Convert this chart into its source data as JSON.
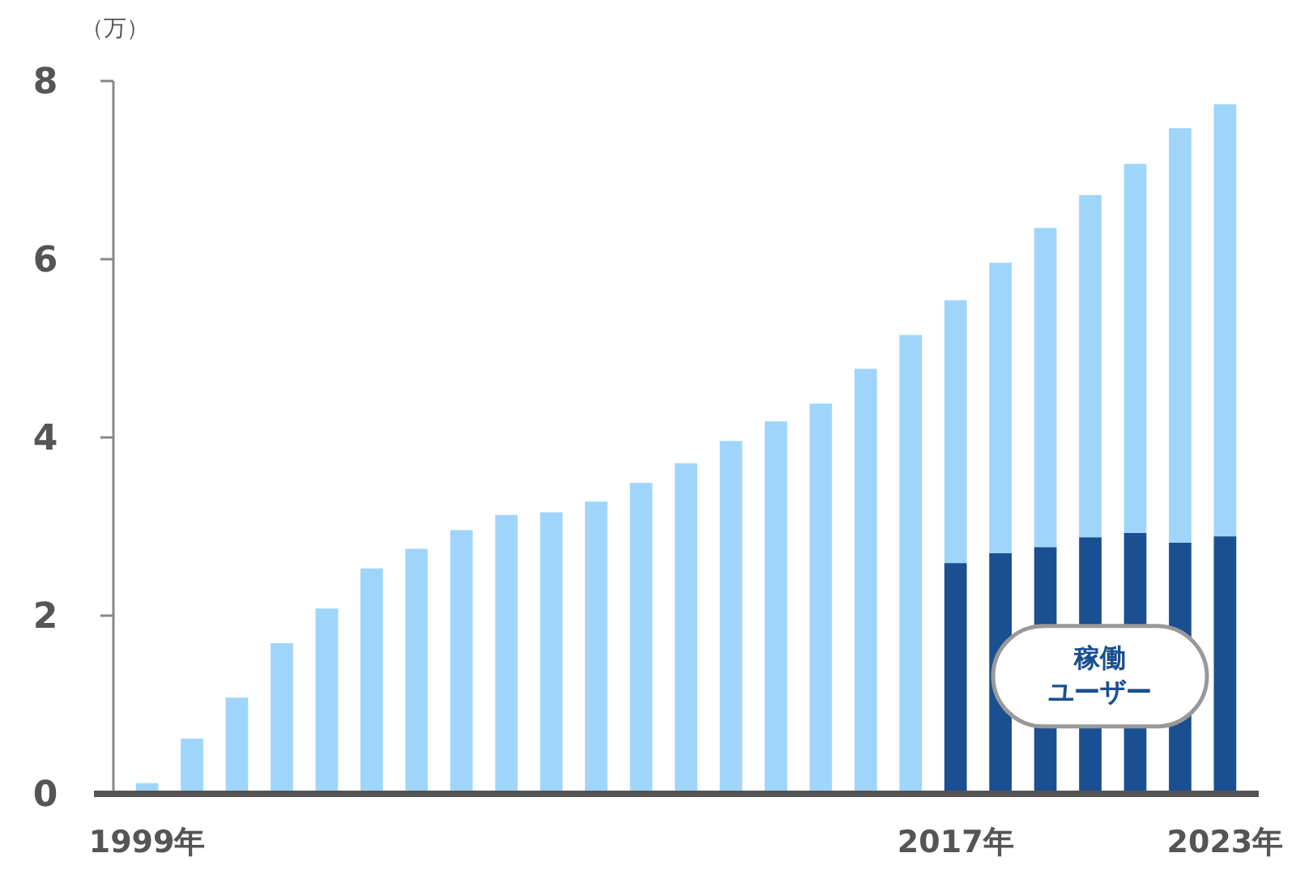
{
  "chart_data": {
    "type": "bar",
    "stacked": true,
    "ylabel": "（万）",
    "categories": [
      "1999年",
      null,
      null,
      null,
      null,
      null,
      null,
      null,
      null,
      null,
      null,
      null,
      null,
      null,
      null,
      null,
      null,
      null,
      "2017年",
      null,
      null,
      null,
      null,
      null,
      "2023年"
    ],
    "series": [
      {
        "name": "稼働ユーザー",
        "color": "#1a4f91",
        "values": [
          null,
          null,
          null,
          null,
          null,
          null,
          null,
          null,
          null,
          null,
          null,
          null,
          null,
          null,
          null,
          null,
          null,
          null,
          2.59,
          2.7,
          2.77,
          2.88,
          2.93,
          2.82,
          2.89
        ]
      },
      {
        "color": "#9fd5fb",
        "values": [
          0.12,
          0.62,
          1.08,
          1.69,
          2.08,
          2.53,
          2.75,
          2.96,
          3.13,
          3.16,
          3.28,
          3.49,
          3.71,
          3.96,
          4.18,
          4.38,
          4.77,
          5.15,
          2.95,
          3.26,
          3.58,
          3.84,
          4.14,
          4.65,
          4.85
        ]
      }
    ],
    "ylim": [
      0,
      8
    ],
    "yticks": [
      0,
      2,
      4,
      6,
      8
    ],
    "grid": false
  }
}
